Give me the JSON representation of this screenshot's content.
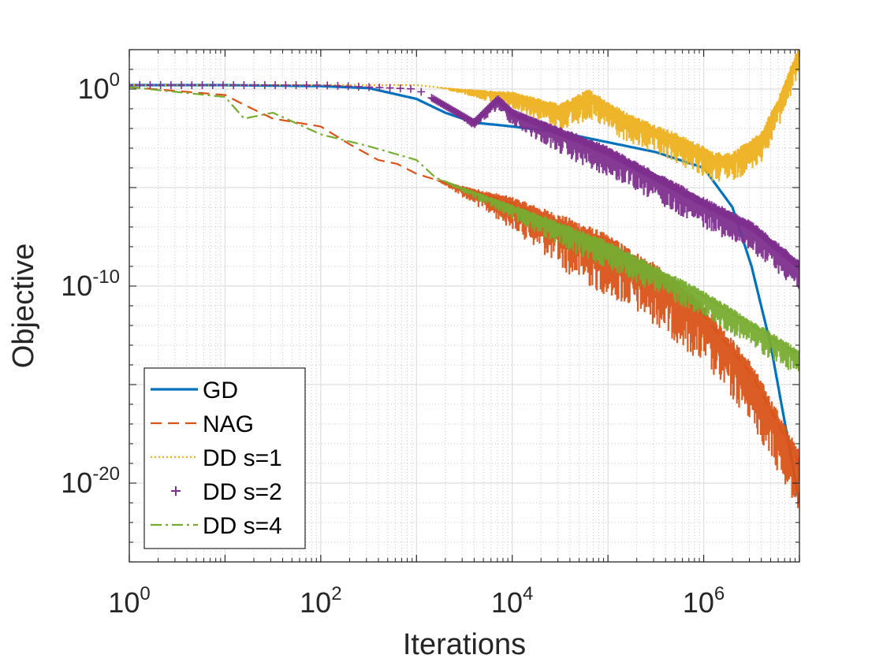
{
  "chart_data": {
    "type": "line",
    "xscale": "log10",
    "yscale": "log10",
    "xlabel": "Iterations",
    "ylabel": "Objective",
    "xlim": [
      1,
      10000000
    ],
    "ylim": [
      1e-24,
      100.0
    ],
    "grid": true,
    "minor_grid": true,
    "legend_position": "bottom-left",
    "x_ticks": [
      {
        "base": "10",
        "exp": "0"
      },
      {
        "base": "10",
        "exp": "2"
      },
      {
        "base": "10",
        "exp": "4"
      },
      {
        "base": "10",
        "exp": "6"
      }
    ],
    "y_ticks": [
      {
        "base": "10",
        "exp": "0"
      },
      {
        "base": "10",
        "exp": "-10"
      },
      {
        "base": "10",
        "exp": "-20"
      }
    ],
    "series": [
      {
        "name": "GD",
        "color": "#0072BD",
        "style": "solid",
        "marker": "none",
        "points": [
          [
            0,
            0.2
          ],
          [
            1,
            0.2
          ],
          [
            2,
            0.15
          ],
          [
            2.5,
            0.05
          ],
          [
            3,
            -0.5
          ],
          [
            3.3,
            -1.2
          ],
          [
            3.6,
            -1.7
          ],
          [
            4,
            -1.9
          ],
          [
            4.5,
            -2.2
          ],
          [
            5,
            -2.7
          ],
          [
            5.5,
            -3.2
          ],
          [
            6,
            -4
          ],
          [
            6.3,
            -6
          ],
          [
            6.5,
            -9
          ],
          [
            6.7,
            -13
          ],
          [
            6.85,
            -17
          ],
          [
            7,
            -21
          ]
        ],
        "noise": 0
      },
      {
        "name": "NAG",
        "color": "#D95319",
        "style": "dashed",
        "marker": "none",
        "points": [
          [
            0,
            0.1
          ],
          [
            1,
            -0.3
          ],
          [
            1.2,
            -0.8
          ],
          [
            1.5,
            -1.5
          ],
          [
            2,
            -1.9
          ],
          [
            2.3,
            -2.8
          ],
          [
            2.6,
            -3.6
          ],
          [
            2.8,
            -3.8
          ],
          [
            3,
            -4.3
          ],
          [
            3.4,
            -4.9
          ],
          [
            4,
            -5.8
          ],
          [
            5,
            -8
          ],
          [
            5.5,
            -9.5
          ],
          [
            6,
            -11.5
          ],
          [
            6.5,
            -14.5
          ],
          [
            7,
            -19
          ]
        ],
        "noise": 1.8
      },
      {
        "name": "DD s=1",
        "color": "#EDB120",
        "style": "dotted",
        "marker": "none",
        "points": [
          [
            0,
            0.2
          ],
          [
            2,
            0.2
          ],
          [
            3,
            0.2
          ],
          [
            4,
            -0.3
          ],
          [
            4.5,
            -1
          ],
          [
            4.8,
            -0.3
          ],
          [
            5.2,
            -1.5
          ],
          [
            5.7,
            -2.5
          ],
          [
            6,
            -3.2
          ],
          [
            6.1,
            -3.5
          ],
          [
            6.3,
            -3.5
          ],
          [
            6.6,
            -2.5
          ],
          [
            6.8,
            -0.5
          ],
          [
            7,
            2
          ]
        ],
        "noise": 0.9
      },
      {
        "name": "DD s=2",
        "color": "#7E2F8E",
        "style": "none",
        "marker": "plus",
        "points": [
          [
            0,
            0.2
          ],
          [
            2,
            0.2
          ],
          [
            3,
            0
          ],
          [
            3.6,
            -1.7
          ],
          [
            3.85,
            -0.5
          ],
          [
            4,
            -1.2
          ],
          [
            4.5,
            -2.2
          ],
          [
            5,
            -3.2
          ],
          [
            5.5,
            -4.5
          ],
          [
            6,
            -5.8
          ],
          [
            6.5,
            -7
          ],
          [
            7,
            -9
          ]
        ],
        "noise": 0.9
      },
      {
        "name": "DD s=4",
        "color": "#77AC30",
        "style": "dashdot",
        "marker": "none",
        "points": [
          [
            0,
            0.1
          ],
          [
            1,
            -0.4
          ],
          [
            1.2,
            -1.5
          ],
          [
            1.5,
            -1.2
          ],
          [
            2,
            -2.3
          ],
          [
            2.5,
            -2.9
          ],
          [
            3,
            -3.6
          ],
          [
            3.2,
            -4.5
          ],
          [
            4,
            -6
          ],
          [
            5,
            -8
          ],
          [
            6,
            -10.5
          ],
          [
            7,
            -13.5
          ]
        ],
        "noise": 0.8
      }
    ]
  }
}
